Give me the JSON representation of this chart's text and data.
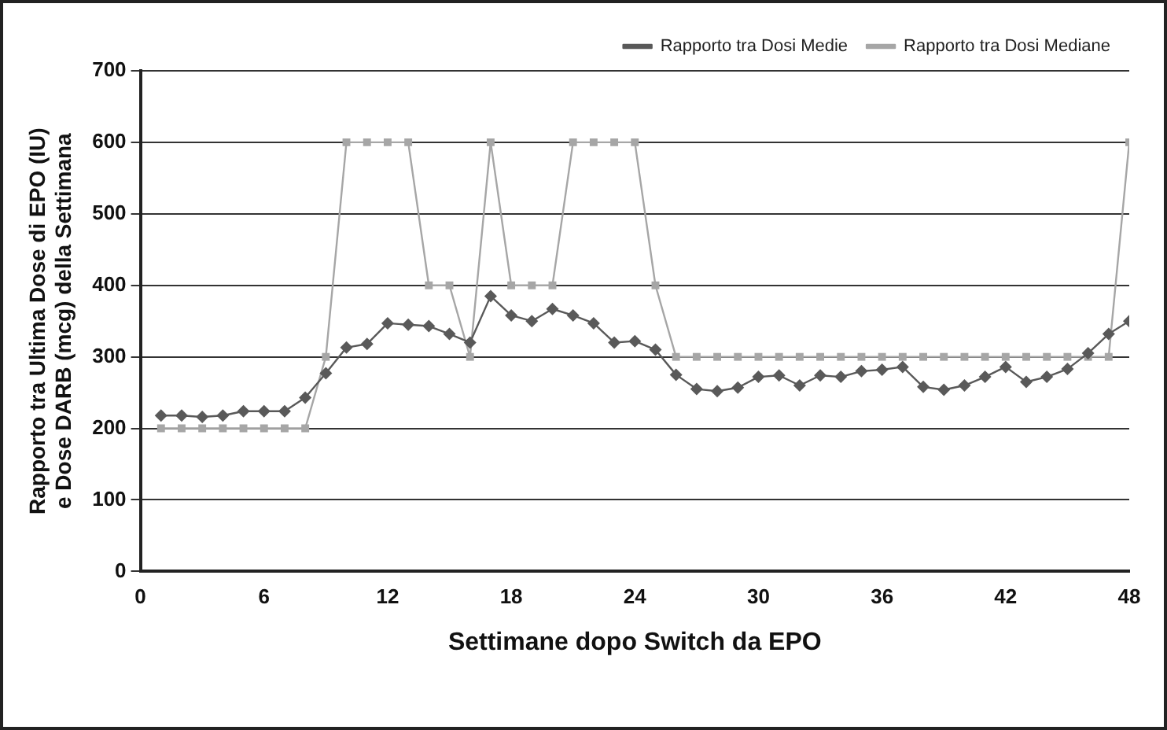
{
  "chart_data": {
    "type": "line",
    "xlabel": "Settimane dopo Switch da EPO",
    "ylabel": "Rapporto tra Ultima Dose di EPO (IU)\ne Dose DARB (mcg) della Settimana",
    "x": [
      1,
      2,
      3,
      4,
      5,
      6,
      7,
      8,
      9,
      10,
      11,
      12,
      13,
      14,
      15,
      16,
      17,
      18,
      19,
      20,
      21,
      22,
      23,
      24,
      25,
      26,
      27,
      28,
      29,
      30,
      31,
      32,
      33,
      34,
      35,
      36,
      37,
      38,
      39,
      40,
      41,
      42,
      43,
      44,
      45,
      46,
      47,
      48
    ],
    "series": [
      {
        "name": "Rapporto tra Dosi Medie",
        "color": "#595959",
        "marker": "diamond",
        "values": [
          218,
          218,
          216,
          218,
          224,
          224,
          224,
          243,
          277,
          313,
          318,
          347,
          345,
          343,
          332,
          320,
          385,
          358,
          350,
          367,
          358,
          347,
          320,
          322,
          310,
          275,
          255,
          252,
          257,
          272,
          274,
          260,
          274,
          272,
          280,
          282,
          286,
          258,
          254,
          260,
          272,
          286,
          265,
          272,
          283,
          305,
          332,
          350
        ]
      },
      {
        "name": "Rapporto tra Dosi Mediane",
        "color": "#a6a6a6",
        "marker": "square",
        "values": [
          200,
          200,
          200,
          200,
          200,
          200,
          200,
          200,
          300,
          600,
          600,
          600,
          600,
          400,
          400,
          300,
          600,
          400,
          400,
          400,
          600,
          600,
          600,
          600,
          400,
          300,
          300,
          300,
          300,
          300,
          300,
          300,
          300,
          300,
          300,
          300,
          300,
          300,
          300,
          300,
          300,
          300,
          300,
          300,
          300,
          300,
          300,
          600
        ]
      }
    ],
    "xlim": [
      0,
      48
    ],
    "xticks": [
      0,
      6,
      12,
      18,
      24,
      30,
      36,
      42,
      48
    ],
    "ylim": [
      0,
      700
    ],
    "yticks": [
      0,
      100,
      200,
      300,
      400,
      500,
      600,
      700
    ],
    "grid": "y",
    "legend": "top right",
    "line_style": "solid"
  }
}
